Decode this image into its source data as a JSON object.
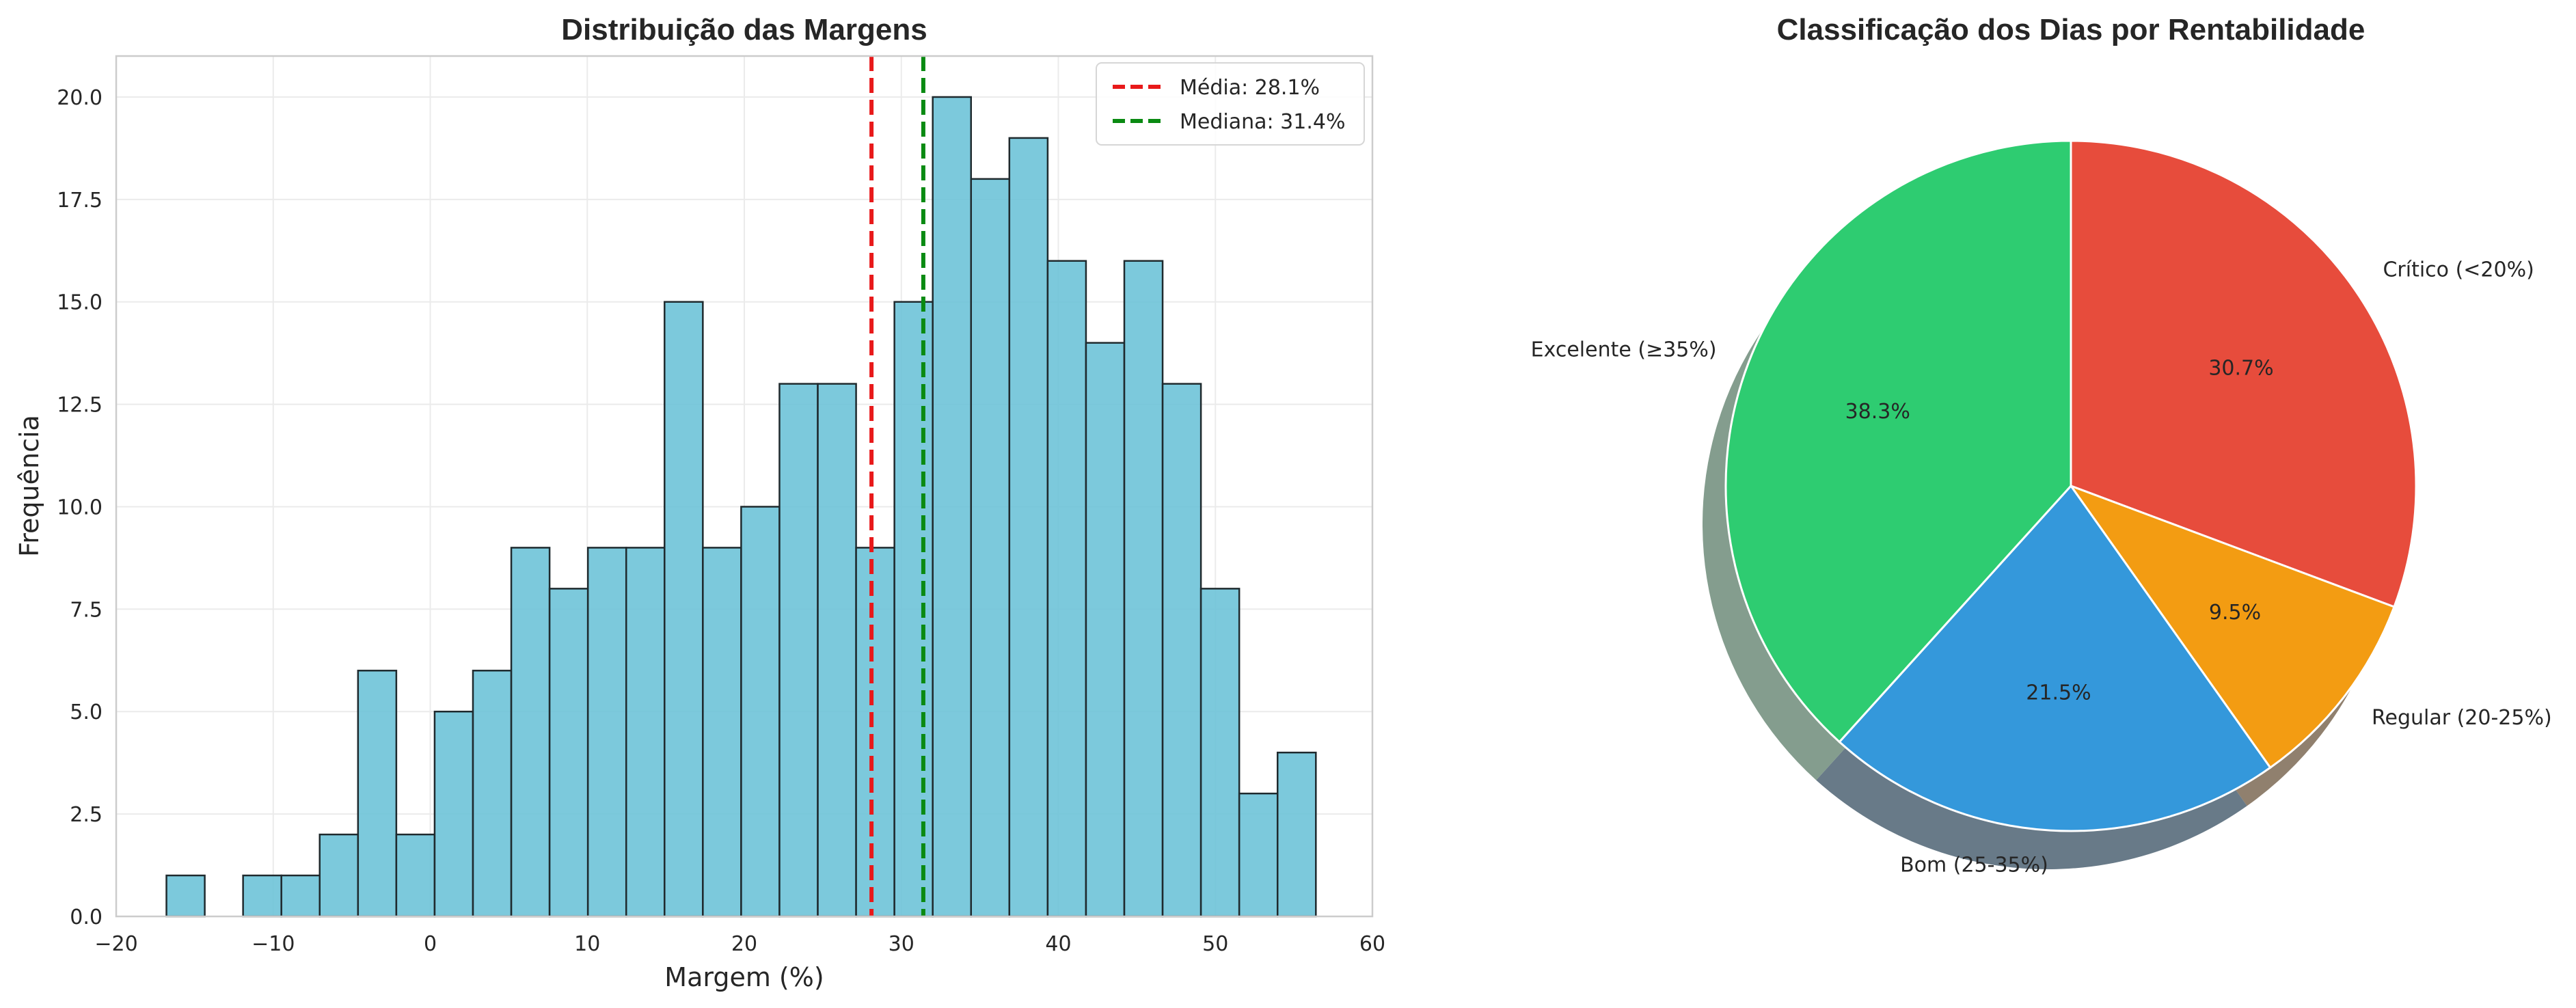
{
  "chart_data": [
    {
      "type": "bar",
      "subtype": "histogram",
      "title": "Distribuição das Margens",
      "xlabel": "Margem (%)",
      "ylabel": "Frequência",
      "xlim": [
        -20,
        60
      ],
      "ylim": [
        0,
        21
      ],
      "xticks": [
        "−20",
        "−10",
        "0",
        "10",
        "20",
        "30",
        "40",
        "50",
        "60"
      ],
      "yticks": [
        "0.0",
        "2.5",
        "5.0",
        "7.5",
        "10.0",
        "12.5",
        "15.0",
        "17.5",
        "20.0"
      ],
      "bin_start": -16.8,
      "bin_width": 2.44,
      "values": [
        1,
        0,
        1,
        1,
        2,
        6,
        2,
        5,
        6,
        9,
        8,
        9,
        9,
        15,
        9,
        10,
        13,
        13,
        9,
        15,
        20,
        18,
        19,
        16,
        14,
        16,
        13,
        8,
        3,
        4
      ],
      "bar_color": "#6ec3d8",
      "grid": true,
      "reference_lines": [
        {
          "name": "Média: 28.1%",
          "x": 28.1,
          "color": "#e8191a",
          "style": "dashed"
        },
        {
          "name": "Mediana: 31.4%",
          "x": 31.4,
          "color": "#0a8a12",
          "style": "dashed"
        }
      ],
      "legend_position": "top-right"
    },
    {
      "type": "pie",
      "title": "Classificação dos Dias por Rentabilidade",
      "shadow": true,
      "start_angle_deg": 90,
      "direction": "clockwise",
      "slices": [
        {
          "label": "Crítico (<20%)",
          "value": 30.7,
          "pct_label": "30.7%",
          "color": "#e74c3c"
        },
        {
          "label": "Regular (20-25%)",
          "value": 9.5,
          "pct_label": "9.5%",
          "color": "#f39c12"
        },
        {
          "label": "Bom (25-35%)",
          "value": 21.5,
          "pct_label": "21.5%",
          "color": "#3498db"
        },
        {
          "label": "Excelente (≥35%)",
          "value": 38.3,
          "pct_label": "38.3%",
          "color": "#2ecc71"
        }
      ]
    }
  ]
}
